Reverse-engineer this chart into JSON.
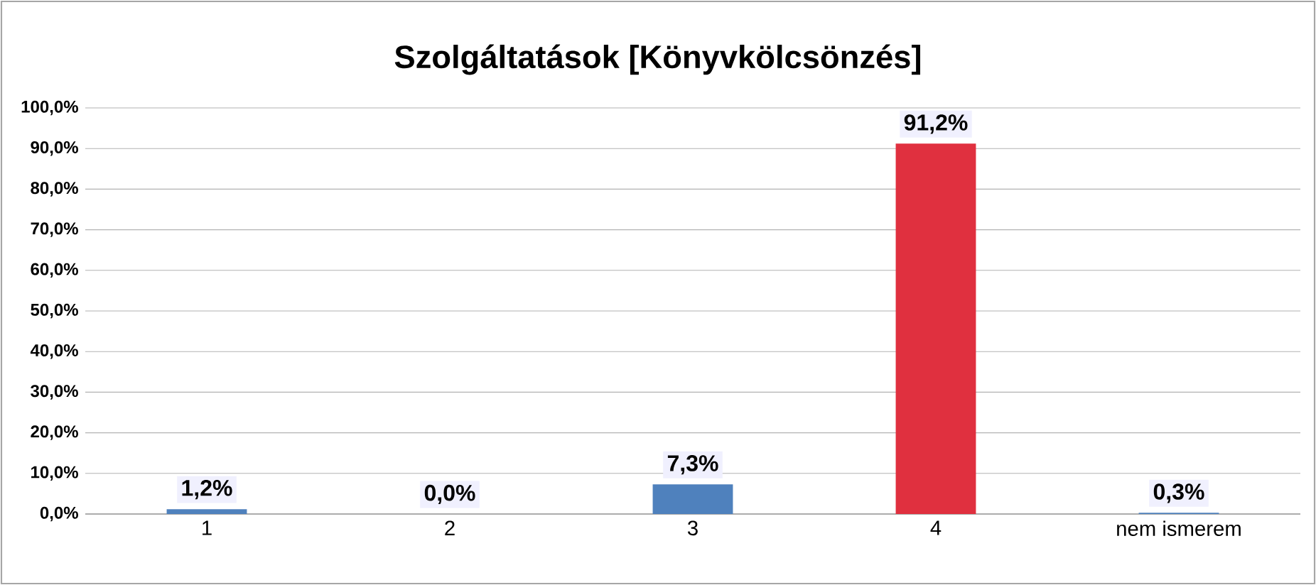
{
  "chart_data": {
    "type": "bar",
    "title": "Szolgáltatások [Könyvkölcsönzés]",
    "categories": [
      "1",
      "2",
      "3",
      "4",
      "nem ismerem"
    ],
    "values": [
      1.2,
      0.0,
      7.3,
      91.2,
      0.3
    ],
    "colors": [
      "#4f81bd",
      "#4f81bd",
      "#4f81bd",
      "#e0303f",
      "#4f81bd"
    ],
    "value_labels": [
      "1,2%",
      "0,0%",
      "7,3%",
      "91,2%",
      "0,3%"
    ],
    "ylim": [
      0,
      100
    ],
    "yticks": [
      {
        "value": 0,
        "label": "0,0%"
      },
      {
        "value": 10,
        "label": "10,0%"
      },
      {
        "value": 20,
        "label": "20,0%"
      },
      {
        "value": 30,
        "label": "30,0%"
      },
      {
        "value": 40,
        "label": "40,0%"
      },
      {
        "value": 50,
        "label": "50,0%"
      },
      {
        "value": 60,
        "label": "60,0%"
      },
      {
        "value": 70,
        "label": "70,0%"
      },
      {
        "value": 80,
        "label": "80,0%"
      },
      {
        "value": 90,
        "label": "90,0%"
      },
      {
        "value": 100,
        "label": "100,0%"
      }
    ],
    "grid": "y"
  }
}
